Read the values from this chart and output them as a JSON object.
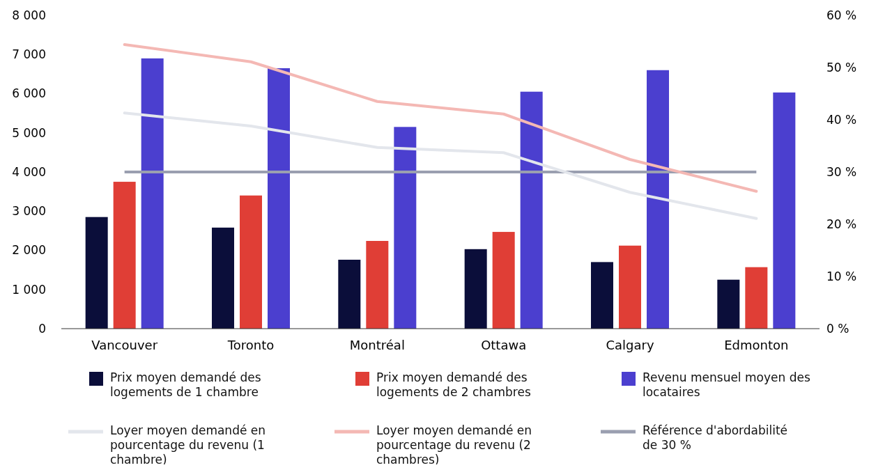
{
  "chart_data": {
    "type": "bar",
    "categories": [
      "Vancouver",
      "Toronto",
      "Montréal",
      "Ottawa",
      "Calgary",
      "Edmonton"
    ],
    "series": [
      {
        "name": "Prix moyen demandé des logements de 1 chambre",
        "color": "#0b0e3a",
        "values": [
          2850,
          2580,
          1760,
          2030,
          1700,
          1250
        ]
      },
      {
        "name": "Prix moyen demandé des logements de 2 chambres",
        "color": "#e03e36",
        "values": [
          3750,
          3400,
          2240,
          2470,
          2120,
          1570
        ]
      },
      {
        "name": "Revenu mensuel moyen des locataires",
        "color": "#4b3fcf",
        "values": [
          6900,
          6650,
          5150,
          6050,
          6600,
          6030
        ]
      },
      {
        "name": "Loyer moyen demandé en pourcentage du revenu (1 chambre)",
        "type": "line",
        "axis": "y2",
        "color": "#e3e6ec",
        "values": [
          41.3,
          38.8,
          34.7,
          33.7,
          26.1,
          21.1
        ]
      },
      {
        "name": "Loyer moyen demandé en pourcentage du revenu (2 chambres)",
        "type": "line",
        "axis": "y2",
        "color": "#f4b8b4",
        "values": [
          54.4,
          51.1,
          43.5,
          41.1,
          32.4,
          26.3
        ]
      }
    ],
    "ref_lines": [
      {
        "axis": "y2",
        "value": 30,
        "label": "Référence d'abordabilité de 30 %",
        "color": "#9a9fb0"
      }
    ],
    "ylim": [
      0,
      8000
    ],
    "yticks": [
      {
        "value": 0,
        "label": "0"
      },
      {
        "value": 1000,
        "label": "1 000"
      },
      {
        "value": 2000,
        "label": "2 000"
      },
      {
        "value": 3000,
        "label": "3 000"
      },
      {
        "value": 4000,
        "label": "4 000"
      },
      {
        "value": 5000,
        "label": "5 000"
      },
      {
        "value": 6000,
        "label": "6 000"
      },
      {
        "value": 7000,
        "label": "7 000"
      },
      {
        "value": 8000,
        "label": "8 000"
      }
    ],
    "y2lim": [
      0,
      60
    ],
    "y2ticks": [
      {
        "value": 0,
        "label": "0 %"
      },
      {
        "value": 10,
        "label": "10 %"
      },
      {
        "value": 20,
        "label": "20 %"
      },
      {
        "value": 30,
        "label": "30 %"
      },
      {
        "value": 40,
        "label": "40 %"
      },
      {
        "value": 50,
        "label": "50 %"
      },
      {
        "value": 60,
        "label": "60 %"
      }
    ],
    "grid": false,
    "legend": "bottom"
  }
}
